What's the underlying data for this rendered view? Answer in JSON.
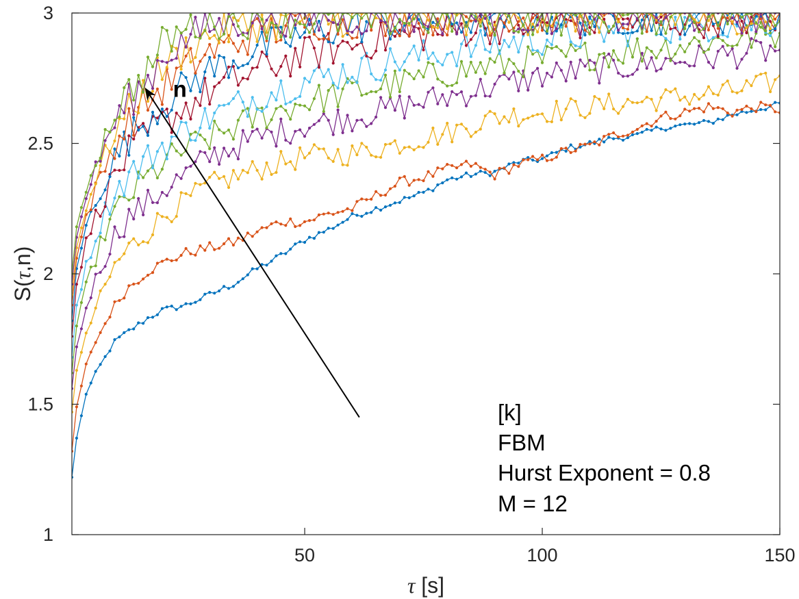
{
  "chart_data": {
    "type": "line",
    "xlabel_symbol": "τ",
    "xlabel_unit": " [s]",
    "ylabel_main": "S(",
    "ylabel_symbol": "τ",
    "ylabel_tail": ",n)",
    "xlim": [
      1,
      150
    ],
    "ylim": [
      1,
      3
    ],
    "xticks": [
      50,
      100,
      150
    ],
    "xtick_labels": [
      "50",
      "100",
      "150"
    ],
    "yticks": [
      1,
      1.5,
      2,
      2.5,
      3
    ],
    "ytick_labels": [
      "1",
      "1.5",
      "2",
      "2.5",
      "3"
    ],
    "grid": false,
    "markers": true,
    "annotation_lines": [
      "[k]",
      "FBM",
      "Hurst Exponent = 0.8",
      "M = 12"
    ],
    "arrow": {
      "label": "n",
      "from": [
        61.5,
        1.45
      ],
      "to": [
        16.5,
        2.71
      ]
    },
    "series": [
      {
        "color": "#0072BD",
        "start": 1.22,
        "points": [
          [
            2,
            1.37
          ],
          [
            4,
            1.54
          ],
          [
            6,
            1.62
          ],
          [
            8,
            1.68
          ],
          [
            10,
            1.74
          ],
          [
            13,
            1.78
          ],
          [
            17,
            1.83
          ],
          [
            20,
            1.86
          ],
          [
            25,
            1.88
          ],
          [
            30,
            1.92
          ],
          [
            35,
            1.96
          ],
          [
            40,
            2.02
          ],
          [
            45,
            2.07
          ],
          [
            50,
            2.13
          ],
          [
            55,
            2.17
          ],
          [
            60,
            2.22
          ],
          [
            65,
            2.25
          ],
          [
            70,
            2.28
          ],
          [
            75,
            2.31
          ],
          [
            80,
            2.36
          ],
          [
            85,
            2.38
          ],
          [
            90,
            2.39
          ],
          [
            95,
            2.43
          ],
          [
            100,
            2.44
          ],
          [
            105,
            2.48
          ],
          [
            110,
            2.5
          ],
          [
            115,
            2.52
          ],
          [
            120,
            2.53
          ],
          [
            125,
            2.56
          ],
          [
            130,
            2.57
          ],
          [
            135,
            2.58
          ],
          [
            140,
            2.61
          ],
          [
            145,
            2.63
          ],
          [
            150,
            2.65
          ]
        ],
        "noise": 0.012
      },
      {
        "color": "#D95319",
        "start": 1.32,
        "points": [
          [
            2,
            1.49
          ],
          [
            4,
            1.65
          ],
          [
            6,
            1.74
          ],
          [
            8,
            1.81
          ],
          [
            10,
            1.88
          ],
          [
            13,
            1.95
          ],
          [
            17,
            2.01
          ],
          [
            20,
            2.04
          ],
          [
            25,
            2.08
          ],
          [
            30,
            2.1
          ],
          [
            35,
            2.12
          ],
          [
            40,
            2.16
          ],
          [
            45,
            2.2
          ],
          [
            50,
            2.2
          ],
          [
            55,
            2.23
          ],
          [
            60,
            2.25
          ],
          [
            65,
            2.3
          ],
          [
            70,
            2.35
          ],
          [
            75,
            2.37
          ],
          [
            80,
            2.4
          ],
          [
            85,
            2.42
          ],
          [
            90,
            2.38
          ],
          [
            95,
            2.42
          ],
          [
            100,
            2.44
          ],
          [
            105,
            2.47
          ],
          [
            110,
            2.49
          ],
          [
            115,
            2.53
          ],
          [
            120,
            2.56
          ],
          [
            125,
            2.6
          ],
          [
            130,
            2.62
          ],
          [
            135,
            2.64
          ],
          [
            140,
            2.62
          ],
          [
            145,
            2.64
          ],
          [
            150,
            2.63
          ]
        ],
        "noise": 0.02
      },
      {
        "color": "#EDB120",
        "start": 1.47,
        "points": [
          [
            2,
            1.63
          ],
          [
            4,
            1.76
          ],
          [
            6,
            1.87
          ],
          [
            8,
            1.95
          ],
          [
            10,
            2.03
          ],
          [
            13,
            2.1
          ],
          [
            17,
            2.16
          ],
          [
            20,
            2.22
          ],
          [
            25,
            2.28
          ],
          [
            30,
            2.34
          ],
          [
            35,
            2.37
          ],
          [
            40,
            2.4
          ],
          [
            50,
            2.45
          ],
          [
            60,
            2.46
          ],
          [
            70,
            2.5
          ],
          [
            80,
            2.54
          ],
          [
            90,
            2.6
          ],
          [
            100,
            2.62
          ],
          [
            110,
            2.64
          ],
          [
            120,
            2.66
          ],
          [
            130,
            2.68
          ],
          [
            140,
            2.7
          ],
          [
            150,
            2.74
          ]
        ],
        "noise": 0.045
      },
      {
        "color": "#7E2F8E",
        "start": 1.56,
        "points": [
          [
            2,
            1.72
          ],
          [
            4,
            1.87
          ],
          [
            6,
            1.98
          ],
          [
            8,
            2.06
          ],
          [
            10,
            2.15
          ],
          [
            13,
            2.22
          ],
          [
            17,
            2.27
          ],
          [
            20,
            2.32
          ],
          [
            25,
            2.38
          ],
          [
            30,
            2.45
          ],
          [
            40,
            2.52
          ],
          [
            50,
            2.57
          ],
          [
            60,
            2.6
          ],
          [
            70,
            2.64
          ],
          [
            80,
            2.68
          ],
          [
            90,
            2.72
          ],
          [
            100,
            2.76
          ],
          [
            110,
            2.78
          ],
          [
            120,
            2.8
          ],
          [
            130,
            2.82
          ],
          [
            140,
            2.84
          ],
          [
            150,
            2.86
          ]
        ],
        "noise": 0.055
      },
      {
        "color": "#77AC30",
        "start": 1.62,
        "points": [
          [
            2,
            1.8
          ],
          [
            4,
            1.95
          ],
          [
            6,
            2.06
          ],
          [
            8,
            2.16
          ],
          [
            10,
            2.23
          ],
          [
            13,
            2.3
          ],
          [
            17,
            2.37
          ],
          [
            20,
            2.42
          ],
          [
            25,
            2.48
          ],
          [
            30,
            2.52
          ],
          [
            40,
            2.6
          ],
          [
            50,
            2.66
          ],
          [
            60,
            2.7
          ],
          [
            70,
            2.73
          ],
          [
            80,
            2.77
          ],
          [
            90,
            2.8
          ],
          [
            100,
            2.82
          ],
          [
            110,
            2.84
          ],
          [
            120,
            2.86
          ],
          [
            130,
            2.88
          ],
          [
            140,
            2.9
          ],
          [
            150,
            2.92
          ]
        ],
        "noise": 0.06
      },
      {
        "color": "#4DBEEE",
        "start": 1.68,
        "points": [
          [
            2,
            1.88
          ],
          [
            4,
            2.03
          ],
          [
            6,
            2.14
          ],
          [
            8,
            2.24
          ],
          [
            10,
            2.31
          ],
          [
            13,
            2.38
          ],
          [
            17,
            2.44
          ],
          [
            20,
            2.49
          ],
          [
            25,
            2.55
          ],
          [
            30,
            2.6
          ],
          [
            40,
            2.68
          ],
          [
            50,
            2.74
          ],
          [
            60,
            2.78
          ],
          [
            70,
            2.82
          ],
          [
            80,
            2.85
          ],
          [
            90,
            2.88
          ],
          [
            100,
            2.9
          ],
          [
            110,
            2.92
          ],
          [
            120,
            2.94
          ],
          [
            130,
            2.95
          ],
          [
            140,
            2.96
          ],
          [
            150,
            2.97
          ]
        ],
        "noise": 0.065
      },
      {
        "color": "#A2142F",
        "start": 1.76,
        "points": [
          [
            2,
            1.96
          ],
          [
            4,
            2.12
          ],
          [
            6,
            2.22
          ],
          [
            8,
            2.3
          ],
          [
            10,
            2.38
          ],
          [
            13,
            2.46
          ],
          [
            17,
            2.53
          ],
          [
            20,
            2.58
          ],
          [
            25,
            2.64
          ],
          [
            30,
            2.7
          ],
          [
            40,
            2.78
          ],
          [
            50,
            2.84
          ],
          [
            60,
            2.88
          ],
          [
            70,
            2.91
          ],
          [
            80,
            2.93
          ],
          [
            90,
            2.95
          ],
          [
            100,
            2.96
          ],
          [
            120,
            2.97
          ],
          [
            150,
            2.98
          ]
        ],
        "noise": 0.07
      },
      {
        "color": "#0072BD",
        "start": 1.82,
        "points": [
          [
            2,
            2.02
          ],
          [
            4,
            2.18
          ],
          [
            6,
            2.28
          ],
          [
            8,
            2.36
          ],
          [
            10,
            2.44
          ],
          [
            13,
            2.52
          ],
          [
            17,
            2.6
          ],
          [
            20,
            2.65
          ],
          [
            25,
            2.72
          ],
          [
            30,
            2.78
          ],
          [
            40,
            2.86
          ],
          [
            50,
            2.92
          ],
          [
            60,
            2.95
          ],
          [
            80,
            2.97
          ],
          [
            100,
            2.98
          ],
          [
            150,
            2.99
          ]
        ],
        "noise": 0.07
      },
      {
        "color": "#D95319",
        "start": 1.88,
        "points": [
          [
            2,
            2.06
          ],
          [
            4,
            2.22
          ],
          [
            6,
            2.32
          ],
          [
            8,
            2.41
          ],
          [
            10,
            2.5
          ],
          [
            13,
            2.58
          ],
          [
            17,
            2.66
          ],
          [
            20,
            2.71
          ],
          [
            25,
            2.79
          ],
          [
            30,
            2.85
          ],
          [
            40,
            2.92
          ],
          [
            50,
            2.96
          ],
          [
            70,
            2.98
          ],
          [
            150,
            2.99
          ]
        ],
        "noise": 0.07
      },
      {
        "color": "#EDB120",
        "start": 1.92,
        "points": [
          [
            2,
            2.1
          ],
          [
            4,
            2.26
          ],
          [
            6,
            2.36
          ],
          [
            8,
            2.45
          ],
          [
            10,
            2.55
          ],
          [
            13,
            2.62
          ],
          [
            17,
            2.72
          ],
          [
            20,
            2.79
          ],
          [
            25,
            2.86
          ],
          [
            30,
            2.92
          ],
          [
            40,
            2.96
          ],
          [
            60,
            2.98
          ],
          [
            150,
            2.99
          ]
        ],
        "noise": 0.07
      },
      {
        "color": "#7E2F8E",
        "start": 1.96,
        "points": [
          [
            2,
            2.14
          ],
          [
            4,
            2.3
          ],
          [
            6,
            2.4
          ],
          [
            8,
            2.5
          ],
          [
            10,
            2.58
          ],
          [
            13,
            2.66
          ],
          [
            17,
            2.74
          ],
          [
            20,
            2.83
          ],
          [
            25,
            2.9
          ],
          [
            30,
            2.95
          ],
          [
            40,
            2.98
          ],
          [
            150,
            2.99
          ]
        ],
        "noise": 0.07
      },
      {
        "color": "#77AC30",
        "start": 2.0,
        "points": [
          [
            2,
            2.18
          ],
          [
            4,
            2.33
          ],
          [
            6,
            2.43
          ],
          [
            8,
            2.53
          ],
          [
            10,
            2.62
          ],
          [
            13,
            2.7
          ],
          [
            17,
            2.78
          ],
          [
            20,
            2.88
          ],
          [
            25,
            2.94
          ],
          [
            30,
            2.97
          ],
          [
            150,
            2.99
          ]
        ],
        "noise": 0.07
      }
    ]
  }
}
